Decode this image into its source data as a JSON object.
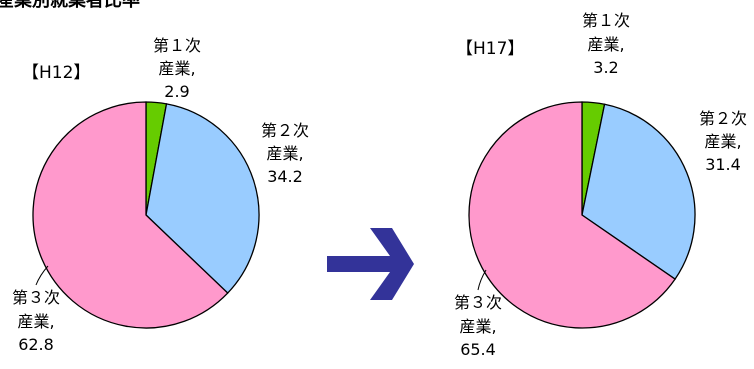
{
  "figure_title": "産業別就業者比率",
  "chart_data": [
    {
      "type": "pie",
      "period": "【H12】",
      "slices": [
        {
          "name": "第１次産業",
          "value": 2.9,
          "color": "#66cc00"
        },
        {
          "name": "第２次産業",
          "value": 34.2,
          "color": "#99ccff"
        },
        {
          "name": "第３次産業",
          "value": 62.8,
          "color": "#ff99cc"
        }
      ],
      "labels": [
        {
          "line1": "第１次",
          "line2": "産業,",
          "value": "2.9"
        },
        {
          "line1": "第２次",
          "line2": "産業,",
          "value": "34.2"
        },
        {
          "line1": "第３次",
          "line2": "産業,",
          "value": "62.8"
        }
      ]
    },
    {
      "type": "pie",
      "period": "【H17】",
      "slices": [
        {
          "name": "第１次産業",
          "value": 3.2,
          "color": "#66cc00"
        },
        {
          "name": "第２次産業",
          "value": 31.4,
          "color": "#99ccff"
        },
        {
          "name": "第３次産業",
          "value": 65.4,
          "color": "#ff99cc"
        }
      ],
      "labels": [
        {
          "line1": "第１次",
          "line2": "産業,",
          "value": "3.2"
        },
        {
          "line1": "第２次",
          "line2": "産業,",
          "value": "31.4"
        },
        {
          "line1": "第３次",
          "line2": "産業,",
          "value": "65.4"
        }
      ]
    }
  ],
  "arrow_color": "#333399"
}
